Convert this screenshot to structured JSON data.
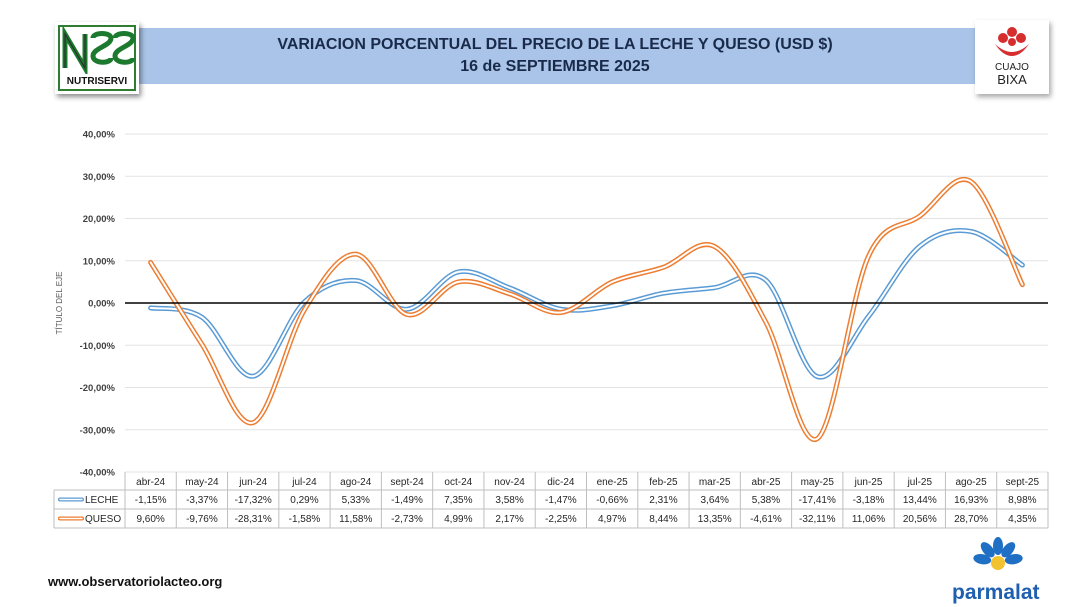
{
  "header": {
    "title_line1": "VARIACION PORCENTUAL DEL PRECIO DE LA LECHE Y QUESO (USD $)",
    "title_line2": "16 de SEPTIEMBRE 2025"
  },
  "logos": {
    "left": "NUTRISERVI",
    "right_line1": "CUAJO",
    "right_line2": "BIXA",
    "bottom": "parmalat"
  },
  "footer": {
    "website": "www.observatoriolacteo.org"
  },
  "colors": {
    "leche": "#5b9bd5",
    "queso": "#ed7d31",
    "title_band": "#a9c4e8"
  },
  "chart_data": {
    "type": "line",
    "title": "VARIACION PORCENTUAL DEL PRECIO DE LA LECHE Y QUESO (USD $)",
    "subtitle": "16 de SEPTIEMBRE 2025",
    "ylabel": "TÍTULO DEL EJE",
    "xlabel": "",
    "ylim": [
      -40,
      40
    ],
    "y_ticks": [
      "40,00%",
      "30,00%",
      "20,00%",
      "10,00%",
      "0,00%",
      "-10,00%",
      "-20,00%",
      "-30,00%",
      "-40,00%"
    ],
    "y_tick_values": [
      40,
      30,
      20,
      10,
      0,
      -10,
      -20,
      -30,
      -40
    ],
    "grid": true,
    "legend": "data-table",
    "categories": [
      "abr-24",
      "may-24",
      "jun-24",
      "jul-24",
      "ago-24",
      "sept-24",
      "oct-24",
      "nov-24",
      "dic-24",
      "ene-25",
      "feb-25",
      "mar-25",
      "abr-25",
      "may-25",
      "jun-25",
      "jul-25",
      "ago-25",
      "sept-25"
    ],
    "series": [
      {
        "name": "LECHE",
        "color": "#5b9bd5",
        "values": [
          -1.15,
          -3.37,
          -17.32,
          0.29,
          5.33,
          -1.49,
          7.35,
          3.58,
          -1.47,
          -0.66,
          2.31,
          3.64,
          5.38,
          -17.41,
          -3.18,
          13.44,
          16.93,
          8.98
        ],
        "labels": [
          "-1,15%",
          "-3,37%",
          "-17,32%",
          "0,29%",
          "5,33%",
          "-1,49%",
          "7,35%",
          "3,58%",
          "-1,47%",
          "-0,66%",
          "2,31%",
          "3,64%",
          "5,38%",
          "-17,41%",
          "-3,18%",
          "13,44%",
          "16,93%",
          "8,98%"
        ]
      },
      {
        "name": "QUESO",
        "color": "#ed7d31",
        "values": [
          9.6,
          -9.76,
          -28.31,
          -1.58,
          11.58,
          -2.73,
          4.99,
          2.17,
          -2.25,
          4.97,
          8.44,
          13.35,
          -4.61,
          -32.11,
          11.06,
          20.56,
          28.7,
          4.35
        ],
        "labels": [
          "9,60%",
          "-9,76%",
          "-28,31%",
          "-1,58%",
          "11,58%",
          "-2,73%",
          "4,99%",
          "2,17%",
          "-2,25%",
          "4,97%",
          "8,44%",
          "13,35%",
          "-4,61%",
          "-32,11%",
          "11,06%",
          "20,56%",
          "28,70%",
          "4,35%"
        ]
      }
    ]
  }
}
